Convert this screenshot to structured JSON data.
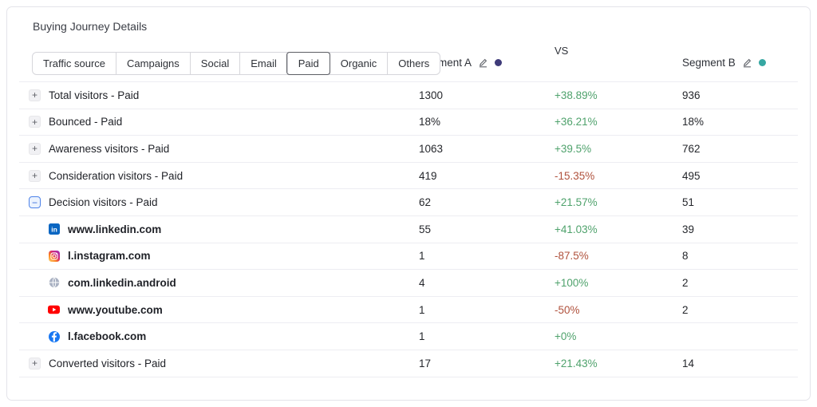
{
  "title": "Buying Journey Details",
  "colors": {
    "segment_a_dot": "#3F3B79",
    "segment_b_dot": "#36A7A2",
    "positive": "#4FA26C",
    "negative": "#B0523D"
  },
  "header": {
    "segment_a_label": "Segment A",
    "vs_label": "VS",
    "segment_b_label": "Segment B"
  },
  "tabs": [
    {
      "label": "Traffic source",
      "selected": false
    },
    {
      "label": "Campaigns",
      "selected": false
    },
    {
      "label": "Social",
      "selected": false
    },
    {
      "label": "Email",
      "selected": false
    },
    {
      "label": "Paid",
      "selected": true
    },
    {
      "label": "Organic",
      "selected": false
    },
    {
      "label": "Others",
      "selected": false
    }
  ],
  "rows": [
    {
      "level": "parent",
      "expand_state": "collapsed",
      "label": "Total visitors - Paid",
      "segment_a": "1300",
      "change": "+38.89%",
      "segment_b": "936"
    },
    {
      "level": "parent",
      "expand_state": "collapsed",
      "label": "Bounced - Paid",
      "segment_a": "18%",
      "change": "+36.21%",
      "segment_b": "18%"
    },
    {
      "level": "parent",
      "expand_state": "collapsed",
      "label": "Awareness visitors - Paid",
      "segment_a": "1063",
      "change": "+39.5%",
      "segment_b": "762"
    },
    {
      "level": "parent",
      "expand_state": "collapsed",
      "label": "Consideration visitors - Paid",
      "segment_a": "419",
      "change": "-15.35%",
      "segment_b": "495"
    },
    {
      "level": "parent",
      "expand_state": "expanded",
      "label": "Decision visitors - Paid",
      "segment_a": "62",
      "change": "+21.57%",
      "segment_b": "51"
    },
    {
      "level": "child",
      "icon": "linkedin-icon",
      "label": "www.linkedin.com",
      "segment_a": "55",
      "change": "+41.03%",
      "segment_b": "39"
    },
    {
      "level": "child",
      "icon": "instagram-icon",
      "label": "l.instagram.com",
      "segment_a": "1",
      "change": "-87.5%",
      "segment_b": "8"
    },
    {
      "level": "child",
      "icon": "globe-icon",
      "label": "com.linkedin.android",
      "segment_a": "4",
      "change": "+100%",
      "segment_b": "2"
    },
    {
      "level": "child",
      "icon": "youtube-icon",
      "label": "www.youtube.com",
      "segment_a": "1",
      "change": "-50%",
      "segment_b": "2"
    },
    {
      "level": "child",
      "icon": "facebook-icon",
      "label": "l.facebook.com",
      "segment_a": "1",
      "change": "+0%",
      "segment_b": ""
    },
    {
      "level": "parent",
      "expand_state": "collapsed",
      "label": "Converted visitors - Paid",
      "segment_a": "17",
      "change": "+21.43%",
      "segment_b": "14"
    }
  ]
}
